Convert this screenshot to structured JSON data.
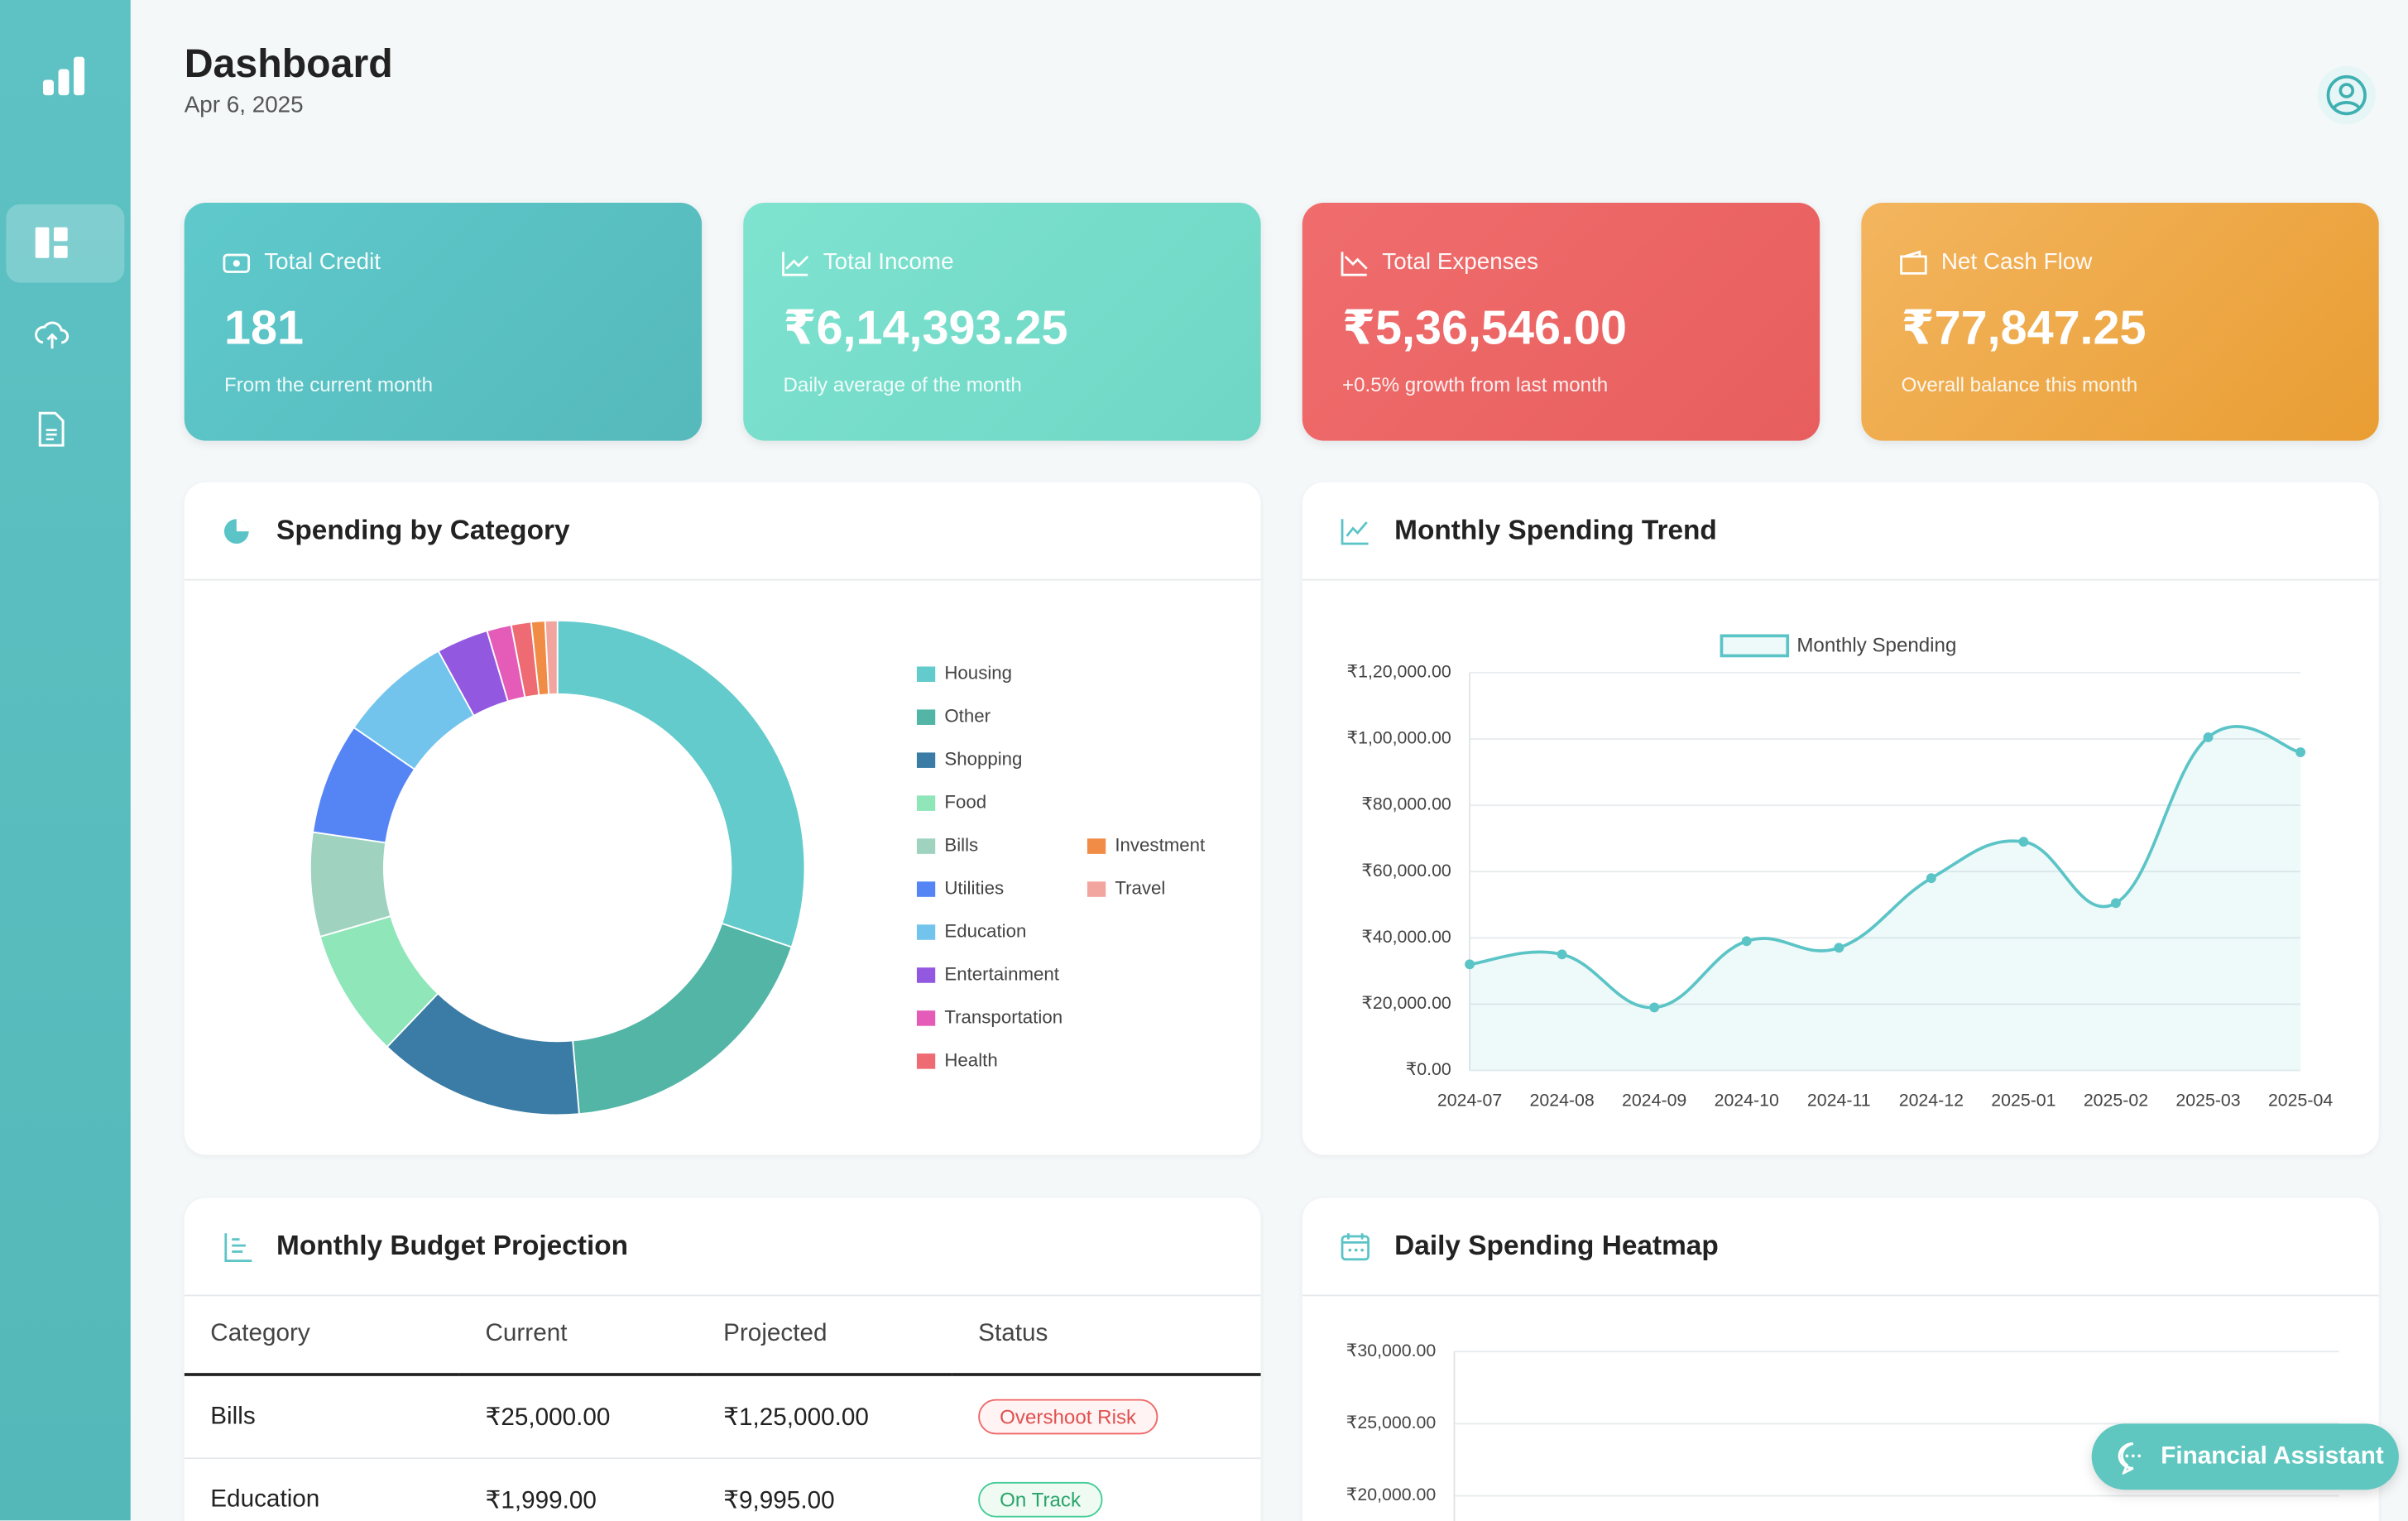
{
  "header": {
    "title": "Dashboard",
    "date": "Apr 6, 2025"
  },
  "cards": [
    {
      "title": "Total Credit",
      "value": "181",
      "note": "From the current month"
    },
    {
      "title": "Total Income",
      "value": "₹6,14,393.25",
      "note": "Daily average of the month"
    },
    {
      "title": "Total Expenses",
      "value": "₹5,36,546.00",
      "note": "+0.5% growth from last month"
    },
    {
      "title": "Net Cash Flow",
      "value": "₹77,847.25",
      "note": "Overall balance this month"
    }
  ],
  "chart_data": [
    {
      "type": "donut",
      "title": "Spending by Category",
      "categories": [
        "Housing",
        "Other",
        "Shopping",
        "Food",
        "Bills",
        "Utilities",
        "Education",
        "Entertainment",
        "Transportation",
        "Health",
        "Investment",
        "Travel"
      ],
      "values": [
        30.2,
        18.4,
        13.5,
        8.4,
        6.8,
        7.3,
        7.4,
        3.4,
        1.6,
        1.3,
        0.9,
        0.8
      ],
      "colors": [
        "#64cbcc",
        "#52b5a6",
        "#3a7ca5",
        "#8ee6b9",
        "#9fd3c0",
        "#5585f5",
        "#72c4ec",
        "#9358e0",
        "#e45cb8",
        "#ef6b73",
        "#f08c45",
        "#f2a59e"
      ]
    },
    {
      "type": "line",
      "title": "Monthly Spending Trend",
      "x": [
        "2024-07",
        "2024-08",
        "2024-09",
        "2024-10",
        "2024-11",
        "2024-12",
        "2025-01",
        "2025-02",
        "2025-03",
        "2025-04"
      ],
      "series": [
        {
          "name": "Monthly Spending",
          "color": "#5bc4c6",
          "values": [
            32000,
            35000,
            19000,
            39000,
            37000,
            58000,
            69000,
            50500,
            100500,
            96000
          ]
        }
      ],
      "ylim": [
        0,
        120000
      ],
      "yticks": [
        {
          "value": 0,
          "label": "₹0.00"
        },
        {
          "value": 20000,
          "label": "₹20,000.00"
        },
        {
          "value": 40000,
          "label": "₹40,000.00"
        },
        {
          "value": 60000,
          "label": "₹60,000.00"
        },
        {
          "value": 80000,
          "label": "₹80,000.00"
        },
        {
          "value": 100000,
          "label": "₹1,00,000.00"
        },
        {
          "value": 120000,
          "label": "₹1,20,000.00"
        }
      ],
      "grid": true,
      "legend": "top"
    },
    {
      "type": "heatmap",
      "title": "Daily Spending Heatmap",
      "ylim": [
        0,
        30000
      ],
      "yticks": [
        {
          "value": 30000,
          "label": "₹30,000.00"
        },
        {
          "value": 25000,
          "label": "₹25,000.00"
        },
        {
          "value": 20000,
          "label": "₹20,000.00"
        }
      ],
      "grid": true
    }
  ],
  "table": {
    "title": "Monthly Budget Projection",
    "columns": [
      "Category",
      "Current",
      "Projected",
      "Status"
    ],
    "rows": [
      [
        "Bills",
        "₹25,000.00",
        "₹1,25,000.00",
        "Overshoot Risk"
      ],
      [
        "Education",
        "₹1,999.00",
        "₹9,995.00",
        "On Track"
      ]
    ]
  },
  "assistant": "Financial Assistant"
}
